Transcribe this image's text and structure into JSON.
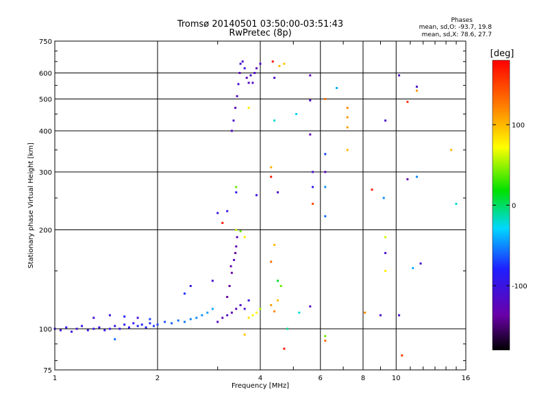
{
  "chart_data": {
    "type": "scatter",
    "title": "Tromsø 20140501 03:50:00-03:51:43",
    "subtitle": "RwPretec (8p)",
    "xlabel": "Frequency [MHz]",
    "ylabel": "Stationary phase Virtual Height [km]",
    "x_scale": "log2",
    "y_scale": "log",
    "xlim": [
      1,
      16
    ],
    "ylim": [
      75,
      750
    ],
    "x_ticks": [
      1,
      2,
      4,
      6,
      8,
      10,
      16
    ],
    "x_minor_ticks": [
      3,
      5,
      7,
      9,
      11,
      12,
      13,
      14,
      15
    ],
    "y_ticks": [
      75,
      100,
      200,
      300,
      400,
      500,
      600,
      750
    ],
    "phases": {
      "heading": "Phases",
      "line_o": "mean, sd,O: -93.7, 19.8",
      "line_x": "mean, sd,X:  78.6, 27.7"
    },
    "colorbar": {
      "label": "[deg]",
      "range": [
        -180,
        180
      ],
      "ticks": [
        100,
        0,
        -100
      ]
    },
    "points": [
      {
        "x": 1.0,
        "y": 100,
        "p": -98
      },
      {
        "x": 1.04,
        "y": 99,
        "p": -105
      },
      {
        "x": 1.08,
        "y": 101,
        "p": -96
      },
      {
        "x": 1.12,
        "y": 98,
        "p": -102
      },
      {
        "x": 1.16,
        "y": 100,
        "p": -108
      },
      {
        "x": 1.2,
        "y": 102,
        "p": -94
      },
      {
        "x": 1.25,
        "y": 99,
        "p": -100
      },
      {
        "x": 1.3,
        "y": 100,
        "p": -97
      },
      {
        "x": 1.35,
        "y": 101,
        "p": -104
      },
      {
        "x": 1.4,
        "y": 99,
        "p": -99
      },
      {
        "x": 1.45,
        "y": 100,
        "p": -92
      },
      {
        "x": 1.5,
        "y": 102,
        "p": -101
      },
      {
        "x": 1.55,
        "y": 100,
        "p": -95
      },
      {
        "x": 1.6,
        "y": 103,
        "p": -88
      },
      {
        "x": 1.65,
        "y": 101,
        "p": -90
      },
      {
        "x": 1.7,
        "y": 104,
        "p": -85
      },
      {
        "x": 1.75,
        "y": 102,
        "p": -82
      },
      {
        "x": 1.8,
        "y": 103,
        "p": -78
      },
      {
        "x": 1.85,
        "y": 101,
        "p": -80
      },
      {
        "x": 1.9,
        "y": 104,
        "p": -76
      },
      {
        "x": 1.95,
        "y": 102,
        "p": -72
      },
      {
        "x": 2.0,
        "y": 103,
        "p": -70
      },
      {
        "x": 2.1,
        "y": 105,
        "p": -66
      },
      {
        "x": 2.2,
        "y": 104,
        "p": -62
      },
      {
        "x": 2.3,
        "y": 106,
        "p": -58
      },
      {
        "x": 2.4,
        "y": 105,
        "p": -55
      },
      {
        "x": 2.5,
        "y": 107,
        "p": -52
      },
      {
        "x": 2.6,
        "y": 108,
        "p": -50
      },
      {
        "x": 2.7,
        "y": 110,
        "p": -48
      },
      {
        "x": 2.8,
        "y": 112,
        "p": -45
      },
      {
        "x": 2.9,
        "y": 115,
        "p": -42
      },
      {
        "x": 1.3,
        "y": 108,
        "p": -110
      },
      {
        "x": 1.45,
        "y": 110,
        "p": -95
      },
      {
        "x": 1.6,
        "y": 109,
        "p": -80
      },
      {
        "x": 1.75,
        "y": 108,
        "p": -112
      },
      {
        "x": 1.9,
        "y": 107,
        "p": -70
      },
      {
        "x": 2.4,
        "y": 128,
        "p": -75
      },
      {
        "x": 2.5,
        "y": 135,
        "p": -100
      },
      {
        "x": 2.9,
        "y": 140,
        "p": -110
      },
      {
        "x": 1.5,
        "y": 93,
        "p": -60
      },
      {
        "x": 3.0,
        "y": 105,
        "p": -120
      },
      {
        "x": 3.1,
        "y": 108,
        "p": -125
      },
      {
        "x": 3.2,
        "y": 110,
        "p": -118
      },
      {
        "x": 3.3,
        "y": 112,
        "p": -130
      },
      {
        "x": 3.4,
        "y": 115,
        "p": -122
      },
      {
        "x": 3.5,
        "y": 118,
        "p": -115
      },
      {
        "x": 3.2,
        "y": 125,
        "p": -135
      },
      {
        "x": 3.25,
        "y": 135,
        "p": -140
      },
      {
        "x": 3.3,
        "y": 148,
        "p": -138
      },
      {
        "x": 3.35,
        "y": 162,
        "p": -128
      },
      {
        "x": 3.4,
        "y": 178,
        "p": -132
      },
      {
        "x": 3.42,
        "y": 190,
        "p": -125
      },
      {
        "x": 3.38,
        "y": 170,
        "p": -142
      },
      {
        "x": 3.28,
        "y": 155,
        "p": -136
      },
      {
        "x": 3.6,
        "y": 115,
        "p": -110
      },
      {
        "x": 3.7,
        "y": 122,
        "p": -100
      },
      {
        "x": 3.4,
        "y": 200,
        "p": 60
      },
      {
        "x": 3.5,
        "y": 198,
        "p": 40
      },
      {
        "x": 3.6,
        "y": 190,
        "p": 80
      },
      {
        "x": 3.8,
        "y": 110,
        "p": 70
      },
      {
        "x": 3.9,
        "y": 112,
        "p": 75
      },
      {
        "x": 4.0,
        "y": 115,
        "p": 55
      },
      {
        "x": 3.7,
        "y": 108,
        "p": 85
      },
      {
        "x": 3.6,
        "y": 96,
        "p": 95
      },
      {
        "x": 4.3,
        "y": 118,
        "p": 110
      },
      {
        "x": 4.4,
        "y": 113,
        "p": 120
      },
      {
        "x": 4.5,
        "y": 122,
        "p": 95
      },
      {
        "x": 4.6,
        "y": 135,
        "p": 40
      },
      {
        "x": 4.5,
        "y": 140,
        "p": 10
      },
      {
        "x": 4.3,
        "y": 160,
        "p": 130
      },
      {
        "x": 4.4,
        "y": 180,
        "p": 100
      },
      {
        "x": 4.7,
        "y": 87,
        "p": 170
      },
      {
        "x": 4.8,
        "y": 100,
        "p": -10
      },
      {
        "x": 5.2,
        "y": 112,
        "p": -20
      },
      {
        "x": 5.6,
        "y": 117,
        "p": -120
      },
      {
        "x": 6.2,
        "y": 95,
        "p": 40
      },
      {
        "x": 6.2,
        "y": 92,
        "p": 130
      },
      {
        "x": 8.1,
        "y": 112,
        "p": 120
      },
      {
        "x": 9.0,
        "y": 110,
        "p": -115
      },
      {
        "x": 10.4,
        "y": 83,
        "p": 155
      },
      {
        "x": 10.2,
        "y": 110,
        "p": -110
      },
      {
        "x": 9.3,
        "y": 150,
        "p": 80
      },
      {
        "x": 9.3,
        "y": 190,
        "p": 60
      },
      {
        "x": 9.3,
        "y": 170,
        "p": -110
      },
      {
        "x": 11.2,
        "y": 153,
        "p": -40
      },
      {
        "x": 11.8,
        "y": 158,
        "p": -110
      },
      {
        "x": 3.3,
        "y": 400,
        "p": -120
      },
      {
        "x": 3.34,
        "y": 430,
        "p": -115
      },
      {
        "x": 3.38,
        "y": 470,
        "p": -125
      },
      {
        "x": 3.42,
        "y": 510,
        "p": -118
      },
      {
        "x": 3.45,
        "y": 555,
        "p": -110
      },
      {
        "x": 3.48,
        "y": 600,
        "p": -122
      },
      {
        "x": 3.5,
        "y": 640,
        "p": -115
      },
      {
        "x": 3.6,
        "y": 620,
        "p": -108
      },
      {
        "x": 3.65,
        "y": 580,
        "p": -125
      },
      {
        "x": 3.7,
        "y": 560,
        "p": -118
      },
      {
        "x": 3.75,
        "y": 590,
        "p": -112
      },
      {
        "x": 3.8,
        "y": 560,
        "p": -120
      },
      {
        "x": 3.85,
        "y": 600,
        "p": -116
      },
      {
        "x": 3.9,
        "y": 620,
        "p": -124
      },
      {
        "x": 4.0,
        "y": 640,
        "p": -115
      },
      {
        "x": 3.55,
        "y": 650,
        "p": -110
      },
      {
        "x": 4.35,
        "y": 650,
        "p": 170
      },
      {
        "x": 4.55,
        "y": 630,
        "p": 100
      },
      {
        "x": 4.7,
        "y": 640,
        "p": 95
      },
      {
        "x": 3.7,
        "y": 470,
        "p": 80
      },
      {
        "x": 3.0,
        "y": 225,
        "p": -100
      },
      {
        "x": 3.1,
        "y": 210,
        "p": 170
      },
      {
        "x": 3.2,
        "y": 228,
        "p": -95
      },
      {
        "x": 3.4,
        "y": 270,
        "p": 40
      },
      {
        "x": 3.4,
        "y": 260,
        "p": -90
      },
      {
        "x": 3.9,
        "y": 255,
        "p": -105
      },
      {
        "x": 4.3,
        "y": 310,
        "p": 105
      },
      {
        "x": 4.3,
        "y": 290,
        "p": 170
      },
      {
        "x": 4.5,
        "y": 260,
        "p": -115
      },
      {
        "x": 4.4,
        "y": 580,
        "p": -120
      },
      {
        "x": 4.4,
        "y": 430,
        "p": -20
      },
      {
        "x": 5.1,
        "y": 450,
        "p": -30
      },
      {
        "x": 5.6,
        "y": 495,
        "p": -120
      },
      {
        "x": 5.6,
        "y": 590,
        "p": -125
      },
      {
        "x": 5.6,
        "y": 390,
        "p": -130
      },
      {
        "x": 5.7,
        "y": 270,
        "p": -90
      },
      {
        "x": 5.7,
        "y": 240,
        "p": 150
      },
      {
        "x": 5.7,
        "y": 300,
        "p": -110
      },
      {
        "x": 6.2,
        "y": 340,
        "p": -70
      },
      {
        "x": 6.2,
        "y": 300,
        "p": -125
      },
      {
        "x": 6.2,
        "y": 270,
        "p": -50
      },
      {
        "x": 6.2,
        "y": 220,
        "p": -60
      },
      {
        "x": 6.7,
        "y": 540,
        "p": -40
      },
      {
        "x": 7.2,
        "y": 470,
        "p": 120
      },
      {
        "x": 7.2,
        "y": 440,
        "p": 115
      },
      {
        "x": 7.2,
        "y": 410,
        "p": 110
      },
      {
        "x": 7.2,
        "y": 350,
        "p": 100
      },
      {
        "x": 6.2,
        "y": 500,
        "p": 130
      },
      {
        "x": 8.5,
        "y": 265,
        "p": 170
      },
      {
        "x": 9.2,
        "y": 250,
        "p": -50
      },
      {
        "x": 9.3,
        "y": 430,
        "p": -110
      },
      {
        "x": 10.2,
        "y": 590,
        "p": -115
      },
      {
        "x": 10.8,
        "y": 490,
        "p": 160
      },
      {
        "x": 11.5,
        "y": 530,
        "p": 110
      },
      {
        "x": 11.5,
        "y": 545,
        "p": -110
      },
      {
        "x": 10.8,
        "y": 285,
        "p": -130
      },
      {
        "x": 11.5,
        "y": 290,
        "p": -50
      },
      {
        "x": 14.5,
        "y": 350,
        "p": 100
      },
      {
        "x": 15.0,
        "y": 240,
        "p": -20
      }
    ]
  }
}
